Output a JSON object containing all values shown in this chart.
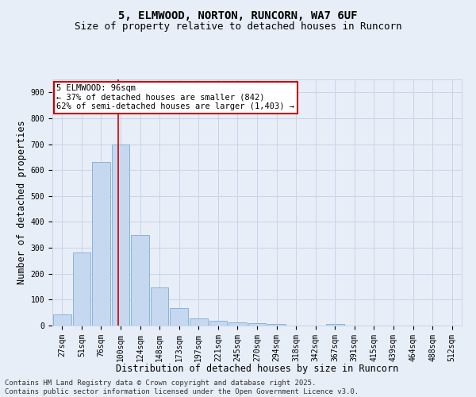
{
  "title_line1": "5, ELMWOOD, NORTON, RUNCORN, WA7 6UF",
  "title_line2": "Size of property relative to detached houses in Runcorn",
  "xlabel": "Distribution of detached houses by size in Runcorn",
  "ylabel": "Number of detached properties",
  "bar_color": "#c5d8f0",
  "bar_edge_color": "#7aadd4",
  "categories": [
    "27sqm",
    "51sqm",
    "76sqm",
    "100sqm",
    "124sqm",
    "148sqm",
    "173sqm",
    "197sqm",
    "221sqm",
    "245sqm",
    "270sqm",
    "294sqm",
    "318sqm",
    "342sqm",
    "367sqm",
    "391sqm",
    "415sqm",
    "439sqm",
    "464sqm",
    "488sqm",
    "512sqm"
  ],
  "values": [
    42,
    283,
    632,
    700,
    350,
    147,
    67,
    29,
    17,
    11,
    10,
    7,
    0,
    0,
    5,
    0,
    0,
    0,
    0,
    0,
    0
  ],
  "ylim": [
    0,
    950
  ],
  "yticks": [
    0,
    100,
    200,
    300,
    400,
    500,
    600,
    700,
    800,
    900
  ],
  "annotation_title": "5 ELMWOOD: 96sqm",
  "annotation_line1": "← 37% of detached houses are smaller (842)",
  "annotation_line2": "62% of semi-detached houses are larger (1,403) →",
  "annotation_box_color": "#ffffff",
  "annotation_border_color": "#cc0000",
  "vline_color": "#cc0000",
  "vline_x_index": 2.88,
  "grid_color": "#c8d4e8",
  "background_color": "#e8eef8",
  "footer_line1": "Contains HM Land Registry data © Crown copyright and database right 2025.",
  "footer_line2": "Contains public sector information licensed under the Open Government Licence v3.0.",
  "title_fontsize": 10,
  "subtitle_fontsize": 9,
  "axis_label_fontsize": 8.5,
  "tick_fontsize": 7,
  "annotation_fontsize": 7.5,
  "footer_fontsize": 6.5
}
